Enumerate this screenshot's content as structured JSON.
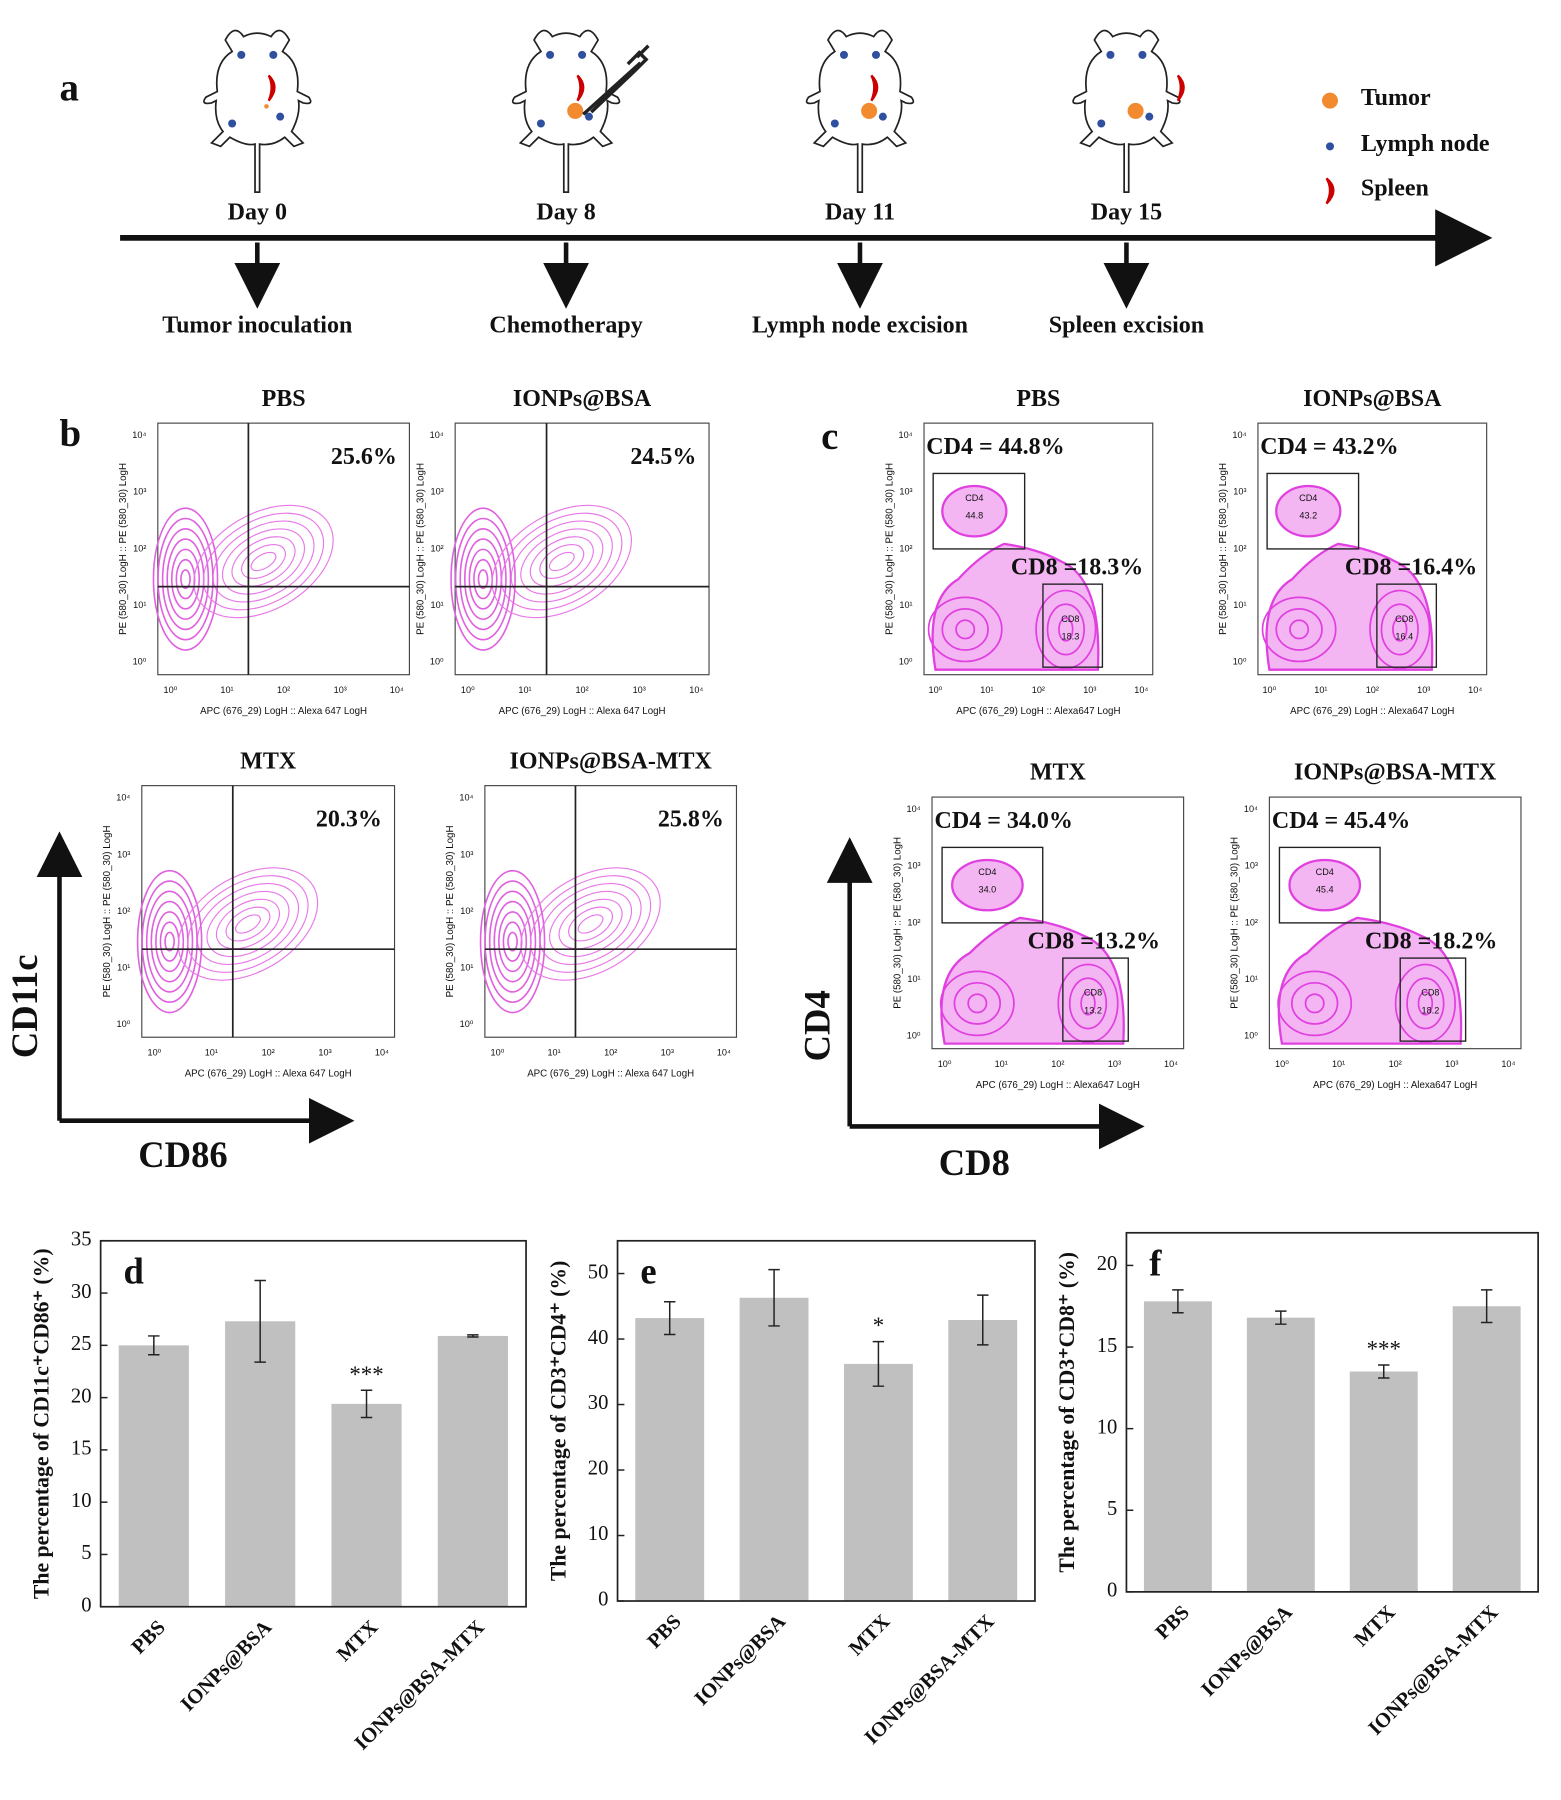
{
  "panel_a": {
    "letter": "a",
    "days": [
      "Day 0",
      "Day 8",
      "Day 11",
      "Day 15"
    ],
    "events": [
      "Tumor inoculation",
      "Chemotherapy",
      "Lymph node excision",
      "Spleen excision"
    ],
    "legend": [
      "Tumor",
      "Lymph node",
      "Spleen"
    ]
  },
  "panel_b": {
    "letter": "b",
    "x_axis": "CD86",
    "y_axis": "CD11c",
    "plot_x_label": "APC (676_29) LogH :: Alexa 647 LogH",
    "plot_y_label": "PE (580_30) LogH :: PE (580_30) LogH",
    "ticks": [
      "10⁰",
      "10¹",
      "10²",
      "10³",
      "10⁴"
    ],
    "plots": [
      {
        "title": "PBS",
        "percent": "25.6%"
      },
      {
        "title": "IONPs@BSA",
        "percent": "24.5%"
      },
      {
        "title": "MTX",
        "percent": "20.3%"
      },
      {
        "title": "IONPs@BSA-MTX",
        "percent": "25.8%"
      }
    ]
  },
  "panel_c": {
    "letter": "c",
    "x_axis": "CD8",
    "y_axis": "CD4",
    "plot_x_label": "APC (676_29) LogH :: Alexa647 LogH",
    "plot_y_label": "PE (580_30) LogH :: PE (580_30) LogH",
    "ticks": [
      "10⁰",
      "10¹",
      "10²",
      "10³",
      "10⁴"
    ],
    "plots": [
      {
        "title": "PBS",
        "cd4_label": "CD4 = 44.8%",
        "cd8_label": "CD8 =18.3%",
        "cd4_gate": [
          "CD4",
          "44.8"
        ],
        "cd8_gate": [
          "CD8",
          "18.3"
        ]
      },
      {
        "title": "IONPs@BSA",
        "cd4_label": "CD4 = 43.2%",
        "cd8_label": "CD8 =16.4%",
        "cd4_gate": [
          "CD4",
          "43.2"
        ],
        "cd8_gate": [
          "CD8",
          "16.4"
        ]
      },
      {
        "title": "MTX",
        "cd4_label": "CD4 = 34.0%",
        "cd8_label": "CD8 =13.2%",
        "cd4_gate": [
          "CD4",
          "34.0"
        ],
        "cd8_gate": [
          "CD8",
          "13.2"
        ]
      },
      {
        "title": "IONPs@BSA-MTX",
        "cd4_label": "CD4 = 45.4%",
        "cd8_label": "CD8 =18.2%",
        "cd4_gate": [
          "CD4",
          "45.4"
        ],
        "cd8_gate": [
          "CD8",
          "18.2"
        ]
      }
    ]
  },
  "chart_data": [
    {
      "type": "bar",
      "letter": "d",
      "y_label": "The percentage of CD11c⁺CD86⁺ (%)",
      "categories": [
        "PBS",
        "IONPs@BSA",
        "MTX",
        "IONPs@BSA-MTX"
      ],
      "values": [
        25.0,
        27.3,
        19.4,
        25.9
      ],
      "errors": [
        0.9,
        3.9,
        1.3,
        0.1
      ],
      "annotations": [
        null,
        null,
        "***",
        null
      ],
      "color": "#c0c0c0",
      "ylim": [
        0,
        35
      ],
      "yticks": [
        0,
        5,
        10,
        15,
        20,
        25,
        30,
        35
      ]
    },
    {
      "type": "bar",
      "letter": "e",
      "y_label": "The percentage of CD3⁺CD4⁺ (%)",
      "categories": [
        "PBS",
        "IONPs@BSA",
        "MTX",
        "IONPs@BSA-MTX"
      ],
      "values": [
        43.2,
        46.3,
        36.2,
        42.9
      ],
      "errors": [
        2.5,
        4.3,
        3.4,
        3.8
      ],
      "annotations": [
        null,
        null,
        "*",
        null
      ],
      "color": "#c0c0c0",
      "ylim": [
        0,
        55
      ],
      "yticks": [
        0,
        10,
        20,
        30,
        40,
        50
      ]
    },
    {
      "type": "bar",
      "letter": "f",
      "y_label": "The percentage of CD3⁺CD8⁺ (%)",
      "categories": [
        "PBS",
        "IONPs@BSA",
        "MTX",
        "IONPs@BSA-MTX"
      ],
      "values": [
        17.8,
        16.8,
        13.5,
        17.5
      ],
      "errors": [
        0.7,
        0.4,
        0.4,
        1.0
      ],
      "annotations": [
        null,
        null,
        "***",
        null
      ],
      "color": "#c0c0c0",
      "ylim": [
        0,
        22
      ],
      "yticks": [
        0,
        5,
        10,
        15,
        20
      ]
    }
  ]
}
